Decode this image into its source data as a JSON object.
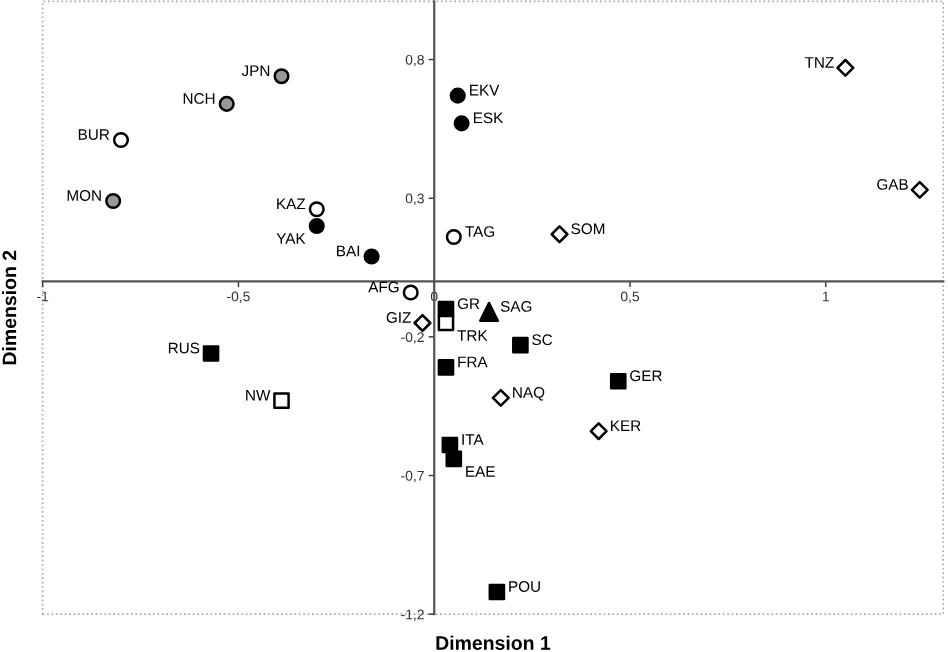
{
  "chart_data": {
    "type": "scatter",
    "xlabel": "Dimension 1",
    "ylabel": "Dimension 2",
    "xlim": [
      -1,
      1.3
    ],
    "ylim": [
      -1.2,
      1.01
    ],
    "xticks": [
      {
        "value": -1,
        "label": "-1"
      },
      {
        "value": -0.5,
        "label": "-0,5"
      },
      {
        "value": 0,
        "label": "0"
      },
      {
        "value": 0.5,
        "label": "0,5"
      },
      {
        "value": 1,
        "label": "1"
      }
    ],
    "yticks": [
      {
        "value": 0.8,
        "label": "0,8"
      },
      {
        "value": 0.3,
        "label": "0,3"
      },
      {
        "value": -0.2,
        "label": "-0,2"
      },
      {
        "value": -0.7,
        "label": "-0,7"
      },
      {
        "value": -1.2,
        "label": "-1,2"
      }
    ],
    "grid": false,
    "legend": false,
    "series": [
      {
        "color": "#999999",
        "marker": "circle",
        "x": [
          -0.39,
          -0.53,
          -0.82
        ],
        "values": [
          0.74,
          0.64,
          0.29
        ]
      },
      {
        "color": "#ffffff",
        "marker": "circle",
        "x": [
          -0.8,
          -0.3,
          0.05,
          -0.06
        ],
        "values": [
          0.51,
          0.26,
          0.16,
          -0.04
        ]
      },
      {
        "color": "#000000",
        "marker": "circle",
        "x": [
          -0.3,
          -0.16,
          0.06,
          0.07
        ],
        "values": [
          0.2,
          0.09,
          0.67,
          0.57
        ]
      },
      {
        "color": "#ffffff",
        "marker": "diamond",
        "x": [
          1.05,
          1.24,
          0.32,
          -0.03,
          0.17,
          0.42
        ],
        "values": [
          0.77,
          0.33,
          0.17,
          -0.15,
          -0.42,
          -0.54
        ]
      },
      {
        "color": "#000000",
        "marker": "triangle",
        "x": [
          0.14
        ],
        "values": [
          -0.11
        ]
      },
      {
        "color": "#000000",
        "marker": "square",
        "x": [
          0.03,
          -0.57,
          0.03,
          0.04,
          0.05,
          0.22,
          0.47,
          0.16
        ],
        "values": [
          -0.1,
          -0.26,
          -0.31,
          -0.59,
          -0.64,
          -0.23,
          -0.36,
          -1.12
        ]
      },
      {
        "color": "#ffffff",
        "marker": "square",
        "x": [
          0.03,
          -0.39
        ],
        "values": [
          -0.15,
          -0.43
        ]
      }
    ],
    "annotations": [
      {
        "text": "JPN",
        "x": -0.39,
        "y": 0.74
      },
      {
        "text": "NCH",
        "x": -0.53,
        "y": 0.64
      },
      {
        "text": "MON",
        "x": -0.82,
        "y": 0.29
      },
      {
        "text": "BUR",
        "x": -0.8,
        "y": 0.51
      },
      {
        "text": "KAZ",
        "x": -0.3,
        "y": 0.26
      },
      {
        "text": "TAG",
        "x": 0.05,
        "y": 0.16
      },
      {
        "text": "AFG",
        "x": -0.06,
        "y": -0.04
      },
      {
        "text": "YAK",
        "x": -0.3,
        "y": 0.2
      },
      {
        "text": "BAI",
        "x": -0.16,
        "y": 0.09
      },
      {
        "text": "EKV",
        "x": 0.06,
        "y": 0.67
      },
      {
        "text": "ESK",
        "x": 0.07,
        "y": 0.57
      },
      {
        "text": "TNZ",
        "x": 1.05,
        "y": 0.77
      },
      {
        "text": "GAB",
        "x": 1.24,
        "y": 0.33
      },
      {
        "text": "SOM",
        "x": 0.32,
        "y": 0.17
      },
      {
        "text": "GIZ",
        "x": -0.03,
        "y": -0.15
      },
      {
        "text": "NAQ",
        "x": 0.17,
        "y": -0.42
      },
      {
        "text": "KER",
        "x": 0.42,
        "y": -0.54
      },
      {
        "text": "SAG",
        "x": 0.14,
        "y": -0.11
      },
      {
        "text": "GR",
        "x": 0.03,
        "y": -0.1
      },
      {
        "text": "RUS",
        "x": -0.57,
        "y": -0.26
      },
      {
        "text": "FRA",
        "x": 0.03,
        "y": -0.31
      },
      {
        "text": "ITA",
        "x": 0.04,
        "y": -0.59
      },
      {
        "text": "EAE",
        "x": 0.05,
        "y": -0.64
      },
      {
        "text": "SC",
        "x": 0.22,
        "y": -0.23
      },
      {
        "text": "GER",
        "x": 0.47,
        "y": -0.36
      },
      {
        "text": "POU",
        "x": 0.16,
        "y": -1.12
      },
      {
        "text": "TRK",
        "x": 0.03,
        "y": -0.15
      },
      {
        "text": "NW",
        "x": -0.39,
        "y": -0.43
      }
    ]
  }
}
